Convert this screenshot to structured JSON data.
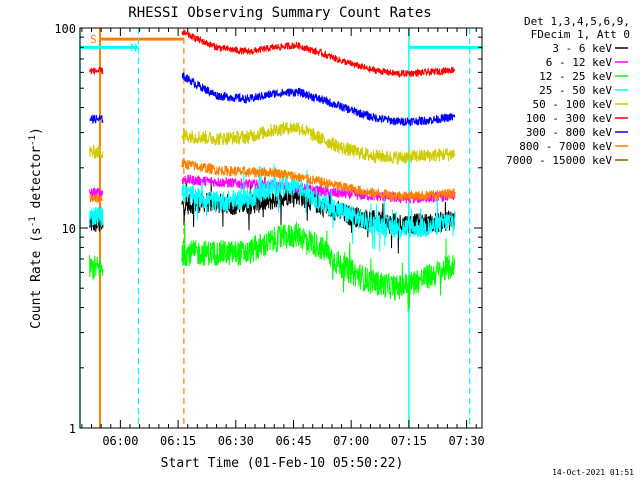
{
  "chart_data": {
    "type": "line",
    "title": "RHESSI Observing Summary Count Rates",
    "xlabel": "Start Time (01-Feb-10 05:50:22)",
    "ylabel_main": "Count Rate (s",
    "ylabel_sup1": "-1",
    "ylabel_mid": " detector",
    "ylabel_sup2": "-1",
    "ylabel_end": ")",
    "yscale": "log",
    "ylim": [
      1,
      100
    ],
    "xlim_minutes": [
      -10.5,
      94
    ],
    "x_ticks": [
      {
        "t": 0,
        "label": "06:00"
      },
      {
        "t": 15,
        "label": "06:15"
      },
      {
        "t": 30,
        "label": "06:30"
      },
      {
        "t": 45,
        "label": "06:45"
      },
      {
        "t": 60,
        "label": "07:00"
      },
      {
        "t": 75,
        "label": "07:15"
      },
      {
        "t": 90,
        "label": "07:30"
      }
    ],
    "y_tick_labels": [
      {
        "v": 100,
        "label": "100"
      },
      {
        "v": 10,
        "label": "10"
      },
      {
        "v": 1,
        "label": "1"
      }
    ],
    "legend": {
      "title_line1": "Det 1,3,4,5,6,9,",
      "title_line2": "FDecim 1, Att 0",
      "placement": "top-right"
    },
    "series": [
      {
        "name": "3 - 6 keV",
        "color": "#000000",
        "noise": 0.12,
        "pre": {
          "t0": -8,
          "t1": -4.5,
          "v": 10.5
        },
        "points": [
          [
            16,
            13
          ],
          [
            22,
            13.5
          ],
          [
            30,
            13
          ],
          [
            38,
            13.5
          ],
          [
            45,
            15
          ],
          [
            52,
            13
          ],
          [
            60,
            11.5
          ],
          [
            70,
            10.5
          ],
          [
            80,
            10.5
          ],
          [
            87,
            11
          ]
        ]
      },
      {
        "name": "6 - 12 keV",
        "color": "#ff00ff",
        "noise": 0.06,
        "pre": {
          "t0": -8,
          "t1": -4.5,
          "v": 15
        },
        "points": [
          [
            16,
            17.5
          ],
          [
            25,
            17
          ],
          [
            35,
            16.5
          ],
          [
            45,
            16
          ],
          [
            55,
            15
          ],
          [
            65,
            14.5
          ],
          [
            75,
            14
          ],
          [
            87,
            14.5
          ]
        ]
      },
      {
        "name": "12 - 25 keV",
        "color": "#00ff00",
        "noise": 0.15,
        "pre": {
          "t0": -8,
          "t1": -4.5,
          "v": 6.3
        },
        "points": [
          [
            16,
            7.5
          ],
          [
            25,
            7.5
          ],
          [
            33,
            7.5
          ],
          [
            40,
            8.7
          ],
          [
            46,
            9.3
          ],
          [
            52,
            8
          ],
          [
            58,
            6.3
          ],
          [
            65,
            5.4
          ],
          [
            72,
            5
          ],
          [
            80,
            5.7
          ],
          [
            87,
            6.5
          ]
        ]
      },
      {
        "name": "25 - 50 keV",
        "color": "#00ffff",
        "noise": 0.12,
        "pre": {
          "t0": -8,
          "t1": -4.5,
          "v": 11.5
        },
        "points": [
          [
            16,
            15
          ],
          [
            25,
            13.5
          ],
          [
            33,
            14
          ],
          [
            40,
            16
          ],
          [
            46,
            16.5
          ],
          [
            52,
            13.5
          ],
          [
            58,
            12
          ],
          [
            65,
            10.5
          ],
          [
            72,
            10
          ],
          [
            80,
            10
          ],
          [
            87,
            11
          ]
        ]
      },
      {
        "name": "50 - 100 keV",
        "color": "#cccc00",
        "noise": 0.08,
        "pre": {
          "t0": -8,
          "t1": -4.5,
          "v": 24
        },
        "points": [
          [
            16,
            29
          ],
          [
            25,
            28
          ],
          [
            33,
            28.5
          ],
          [
            40,
            31
          ],
          [
            46,
            32
          ],
          [
            52,
            28
          ],
          [
            58,
            25
          ],
          [
            65,
            23
          ],
          [
            72,
            22.5
          ],
          [
            80,
            23
          ],
          [
            87,
            23.5
          ]
        ]
      },
      {
        "name": "100 - 300 keV",
        "color": "#ff0000",
        "noise": 0.04,
        "pre": {
          "t0": -8,
          "t1": -4.5,
          "v": 61
        },
        "points": [
          [
            16,
            95
          ],
          [
            20,
            88
          ],
          [
            25,
            80
          ],
          [
            33,
            76
          ],
          [
            40,
            80
          ],
          [
            46,
            82
          ],
          [
            52,
            75
          ],
          [
            58,
            68
          ],
          [
            65,
            62
          ],
          [
            72,
            59
          ],
          [
            80,
            60
          ],
          [
            87,
            62
          ]
        ]
      },
      {
        "name": "300 - 800 keV",
        "color": "#0000ff",
        "noise": 0.05,
        "pre": {
          "t0": -8,
          "t1": -4.5,
          "v": 35
        },
        "points": [
          [
            16,
            58
          ],
          [
            20,
            52
          ],
          [
            25,
            46
          ],
          [
            33,
            44
          ],
          [
            40,
            47
          ],
          [
            46,
            48
          ],
          [
            52,
            44
          ],
          [
            58,
            40
          ],
          [
            65,
            36
          ],
          [
            72,
            34
          ],
          [
            80,
            34.5
          ],
          [
            87,
            36
          ]
        ]
      },
      {
        "name": "800 - 7000 keV",
        "color": "#ff8000",
        "noise": 0.06,
        "pre": {
          "t0": -8,
          "t1": -4.5,
          "v": 14
        },
        "points": [
          [
            16,
            21
          ],
          [
            25,
            19.5
          ],
          [
            33,
            19
          ],
          [
            40,
            19
          ],
          [
            46,
            18
          ],
          [
            52,
            17
          ],
          [
            58,
            16
          ],
          [
            65,
            15
          ],
          [
            72,
            14.5
          ],
          [
            80,
            14.5
          ],
          [
            87,
            15
          ]
        ]
      },
      {
        "name": "7000 - 15000 keV",
        "color": "#806000",
        "noise": 0,
        "pre": null,
        "points": []
      }
    ],
    "annotations": {
      "saa": {
        "label": "S",
        "color": "#ff8000",
        "start": -5.3,
        "end": 16.5,
        "level": 88
      },
      "night": {
        "label": "N",
        "color": "#00ffff",
        "segments": [
          [
            -10.5,
            4.7
          ],
          [
            75,
            94
          ]
        ],
        "level": 80,
        "dashed_edges": [
          4.7,
          90.8
        ],
        "solid_edges": [
          -10.5,
          75
        ]
      }
    }
  },
  "footer": {
    "timestamp": "14-Oct-2021 01:51"
  },
  "colors": {
    "background": "#ffffff",
    "axes": "#000000"
  }
}
